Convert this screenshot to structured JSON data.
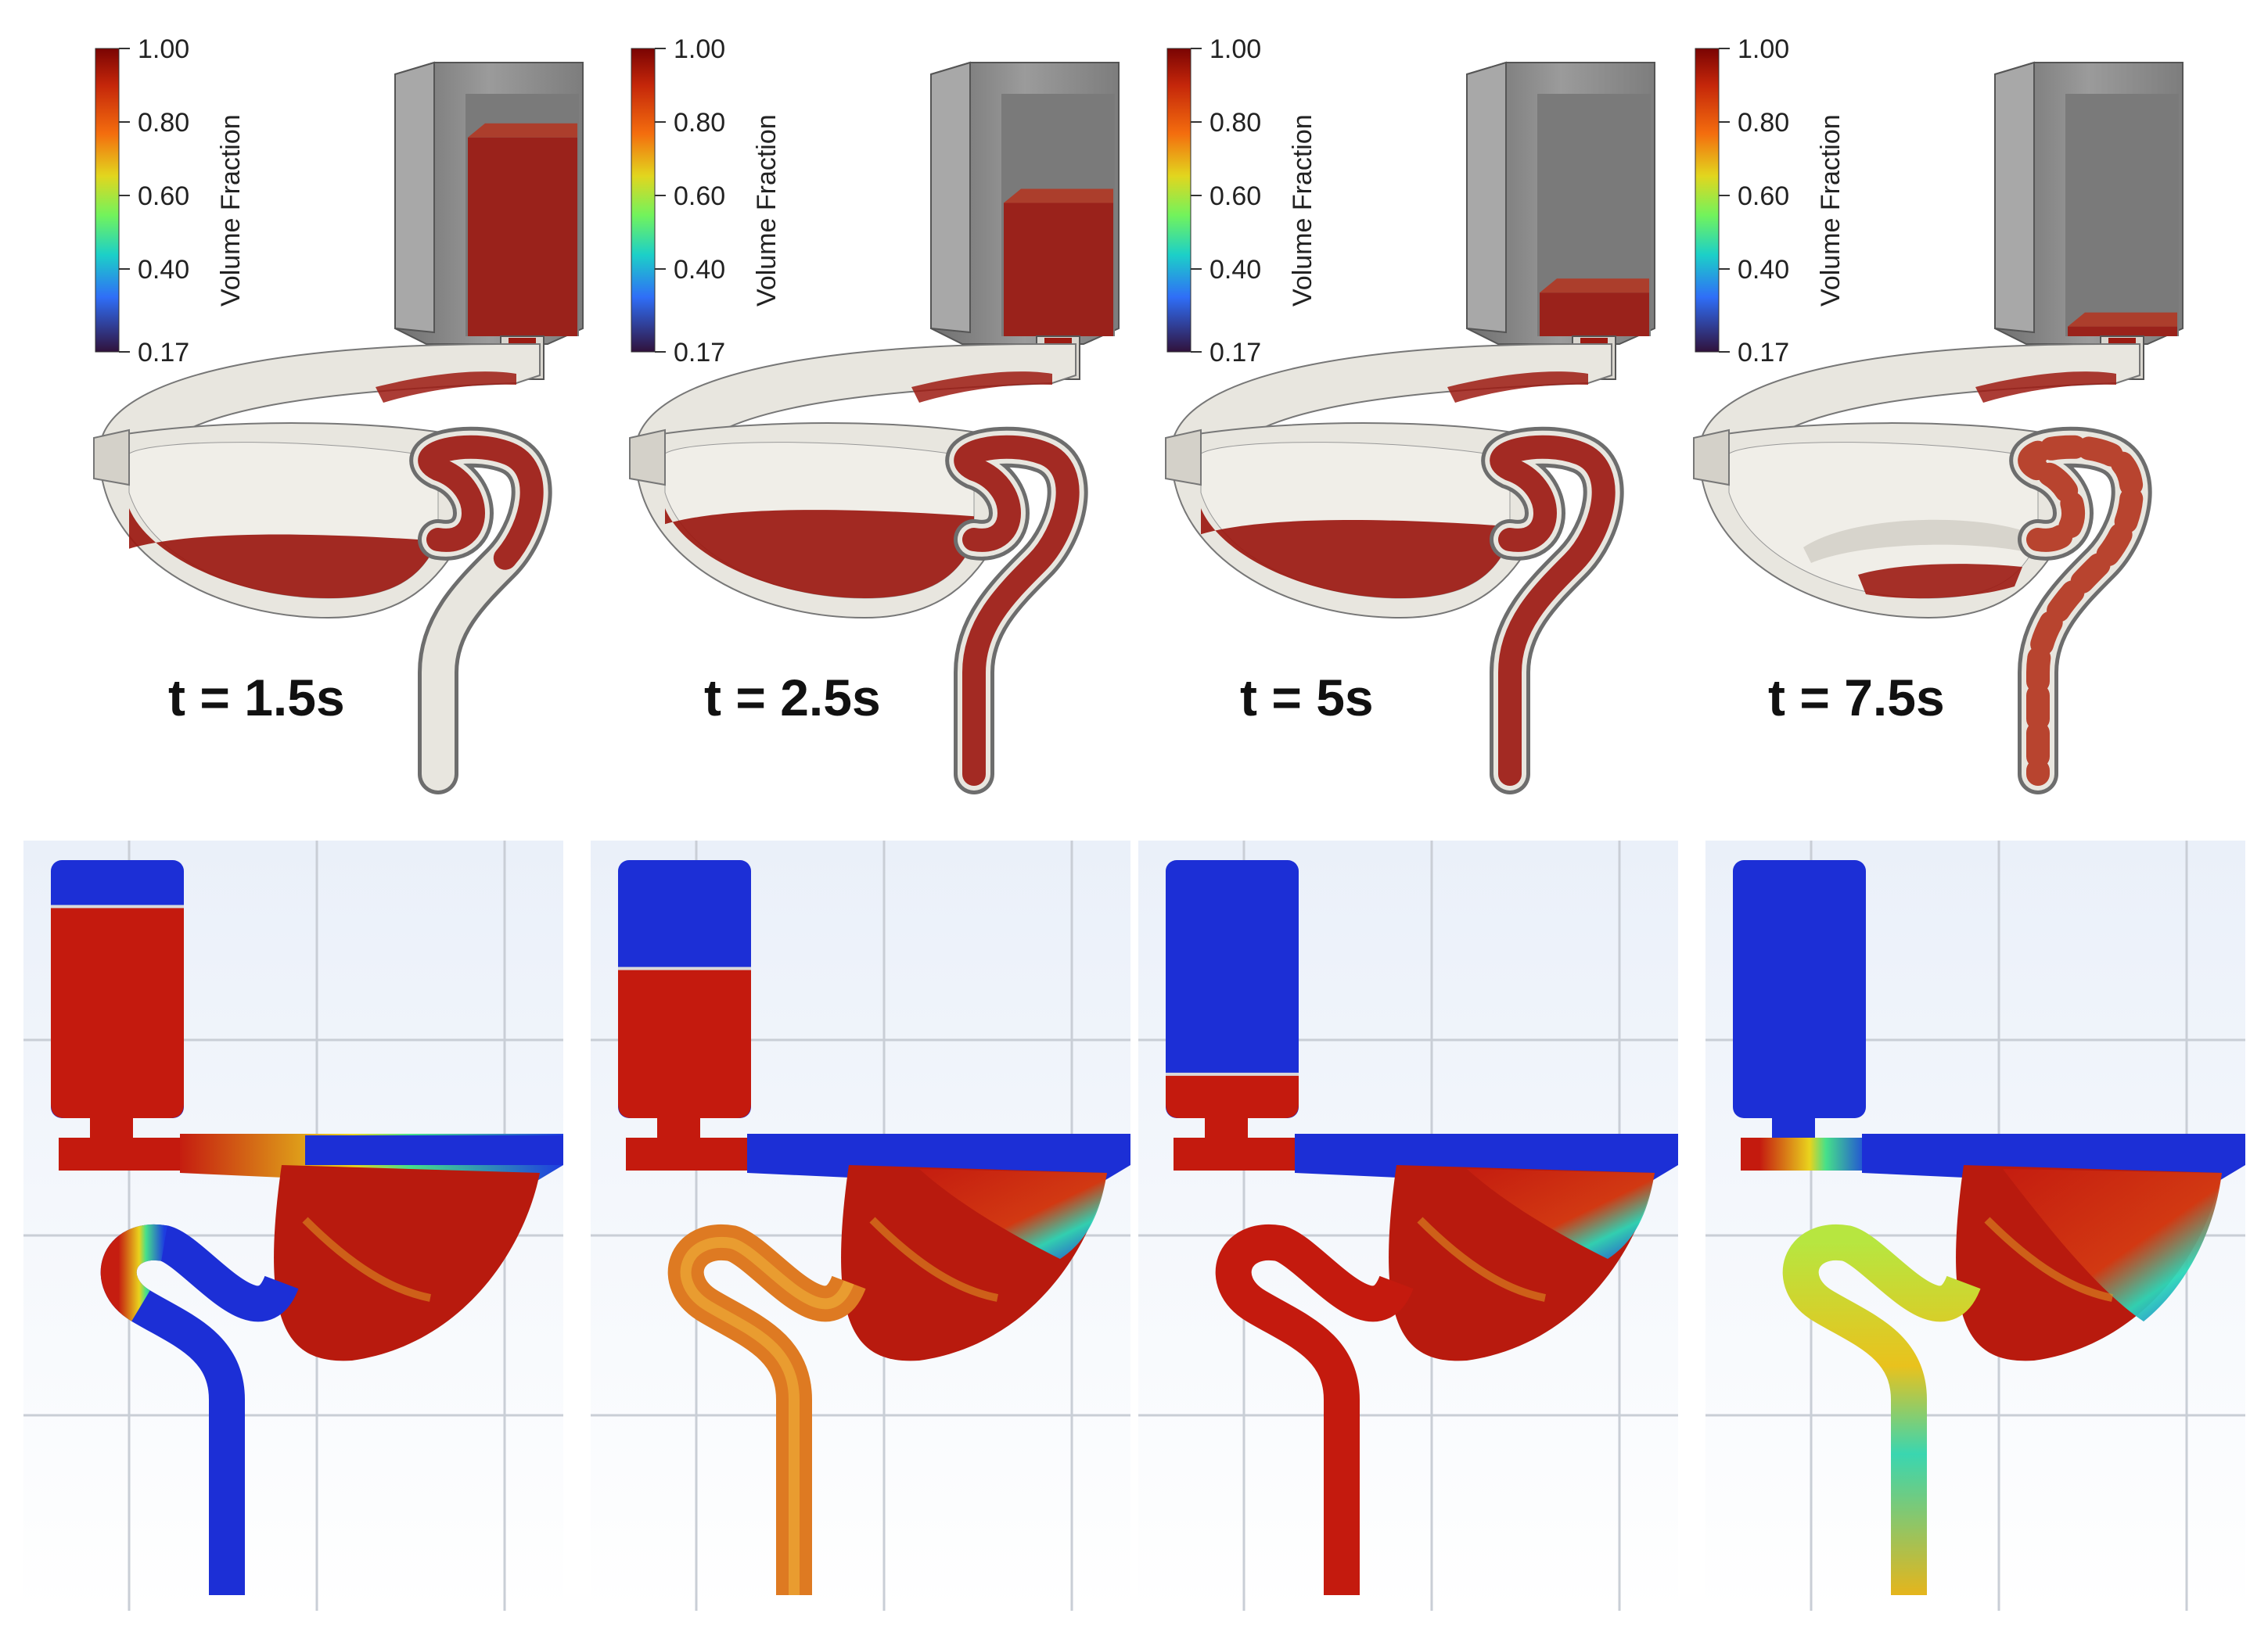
{
  "colorbar": {
    "title": "Volume Fraction",
    "ticks": [
      "1.00",
      "0.80",
      "0.60",
      "0.40",
      "0.17"
    ]
  },
  "panels": [
    {
      "time_label": "t = 1.5s",
      "tank_fill": 0.82,
      "bottom_tank_fill": 0.82,
      "bowl_fill": 0.45,
      "trap_state": "partial"
    },
    {
      "time_label": "t = 2.5s",
      "tank_fill": 0.55,
      "bottom_tank_fill": 0.58,
      "bowl_fill": 0.62,
      "trap_state": "full"
    },
    {
      "time_label": "t = 5s",
      "tank_fill": 0.18,
      "bottom_tank_fill": 0.17,
      "bowl_fill": 0.55,
      "trap_state": "full"
    },
    {
      "time_label": "t = 7.5s",
      "tank_fill": 0.04,
      "bottom_tank_fill": 0.0,
      "bowl_fill": 0.05,
      "trap_state": "draining"
    }
  ],
  "colors": {
    "water": "#9c1a12",
    "water_dark": "#7a0f0a",
    "air_blue": "#1c2fd6",
    "wall_grey": "#8e8e8e",
    "ceramic": "#e8e6df",
    "grid_bg": "#f3f6fb",
    "grid_line": "#c9ced6"
  }
}
